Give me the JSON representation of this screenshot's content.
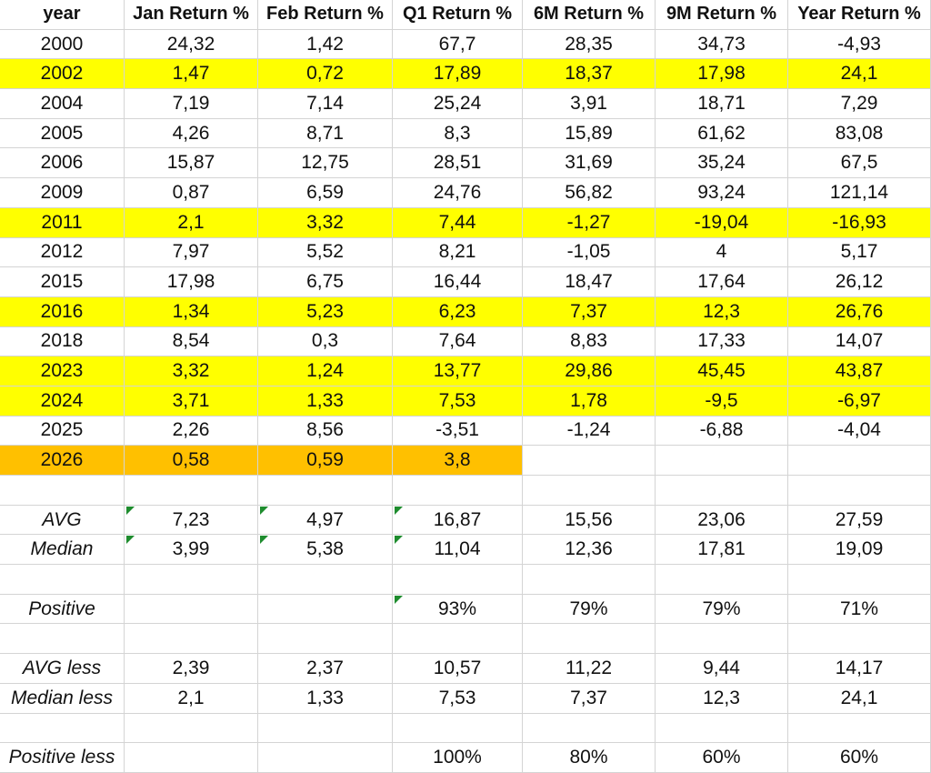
{
  "columns": [
    "year",
    "Jan Return %",
    "Feb Return %",
    "Q1 Return %",
    "6M Return %",
    "9M Return %",
    "Year Return %"
  ],
  "rows": [
    {
      "cells": [
        "2000",
        "24,32",
        "1,42",
        "67,7",
        "28,35",
        "34,73",
        "-4,93"
      ],
      "highlight": "none"
    },
    {
      "cells": [
        "2002",
        "1,47",
        "0,72",
        "17,89",
        "18,37",
        "17,98",
        "24,1"
      ],
      "highlight": "yellow"
    },
    {
      "cells": [
        "2004",
        "7,19",
        "7,14",
        "25,24",
        "3,91",
        "18,71",
        "7,29"
      ],
      "highlight": "none"
    },
    {
      "cells": [
        "2005",
        "4,26",
        "8,71",
        "8,3",
        "15,89",
        "61,62",
        "83,08"
      ],
      "highlight": "none"
    },
    {
      "cells": [
        "2006",
        "15,87",
        "12,75",
        "28,51",
        "31,69",
        "35,24",
        "67,5"
      ],
      "highlight": "none"
    },
    {
      "cells": [
        "2009",
        "0,87",
        "6,59",
        "24,76",
        "56,82",
        "93,24",
        "121,14"
      ],
      "highlight": "none"
    },
    {
      "cells": [
        "2011",
        "2,1",
        "3,32",
        "7,44",
        "-1,27",
        "-19,04",
        "-16,93"
      ],
      "highlight": "yellow"
    },
    {
      "cells": [
        "2012",
        "7,97",
        "5,52",
        "8,21",
        "-1,05",
        "4",
        "5,17"
      ],
      "highlight": "none"
    },
    {
      "cells": [
        "2015",
        "17,98",
        "6,75",
        "16,44",
        "18,47",
        "17,64",
        "26,12"
      ],
      "highlight": "none"
    },
    {
      "cells": [
        "2016",
        "1,34",
        "5,23",
        "6,23",
        "7,37",
        "12,3",
        "26,76"
      ],
      "highlight": "yellow"
    },
    {
      "cells": [
        "2018",
        "8,54",
        "0,3",
        "7,64",
        "8,83",
        "17,33",
        "14,07"
      ],
      "highlight": "none"
    },
    {
      "cells": [
        "2023",
        "3,32",
        "1,24",
        "13,77",
        "29,86",
        "45,45",
        "43,87"
      ],
      "highlight": "yellow"
    },
    {
      "cells": [
        "2024",
        "3,71",
        "1,33",
        "7,53",
        "1,78",
        "-9,5",
        "-6,97"
      ],
      "highlight": "yellow"
    },
    {
      "cells": [
        "2025",
        "2,26",
        "8,56",
        "-3,51",
        "-1,24",
        "-6,88",
        "-4,04"
      ],
      "highlight": "none"
    },
    {
      "cells": [
        "2026",
        "0,58",
        "0,59",
        "3,8",
        "",
        "",
        ""
      ],
      "highlight": "orange"
    }
  ],
  "stats": [
    {
      "cells": [
        "",
        "",
        "",
        "",
        "",
        "",
        ""
      ]
    },
    {
      "cells": [
        "AVG",
        "7,23",
        "4,97",
        "16,87",
        "15,56",
        "23,06",
        "27,59"
      ]
    },
    {
      "cells": [
        "Median",
        "3,99",
        "5,38",
        "11,04",
        "12,36",
        "17,81",
        "19,09"
      ]
    },
    {
      "cells": [
        "",
        "",
        "",
        "",
        "",
        "",
        ""
      ]
    },
    {
      "cells": [
        "Positive",
        "",
        "",
        "93%",
        "79%",
        "79%",
        "71%"
      ]
    },
    {
      "cells": [
        "",
        "",
        "",
        "",
        "",
        "",
        ""
      ]
    },
    {
      "cells": [
        "AVG less",
        "2,39",
        "2,37",
        "10,57",
        "11,22",
        "9,44",
        "14,17"
      ]
    },
    {
      "cells": [
        "Median less",
        "2,1",
        "1,33",
        "7,53",
        "7,37",
        "12,3",
        "24,1"
      ]
    },
    {
      "cells": [
        "",
        "",
        "",
        "",
        "",
        "",
        ""
      ]
    },
    {
      "cells": [
        "Positive less",
        "",
        "",
        "100%",
        "80%",
        "60%",
        "60%"
      ]
    }
  ],
  "colors": {
    "yellow_highlight": "#ffff00",
    "orange_highlight": "#ffc000",
    "error_indicator": "#1e8c2e",
    "gridline": "#d4d4d4"
  }
}
